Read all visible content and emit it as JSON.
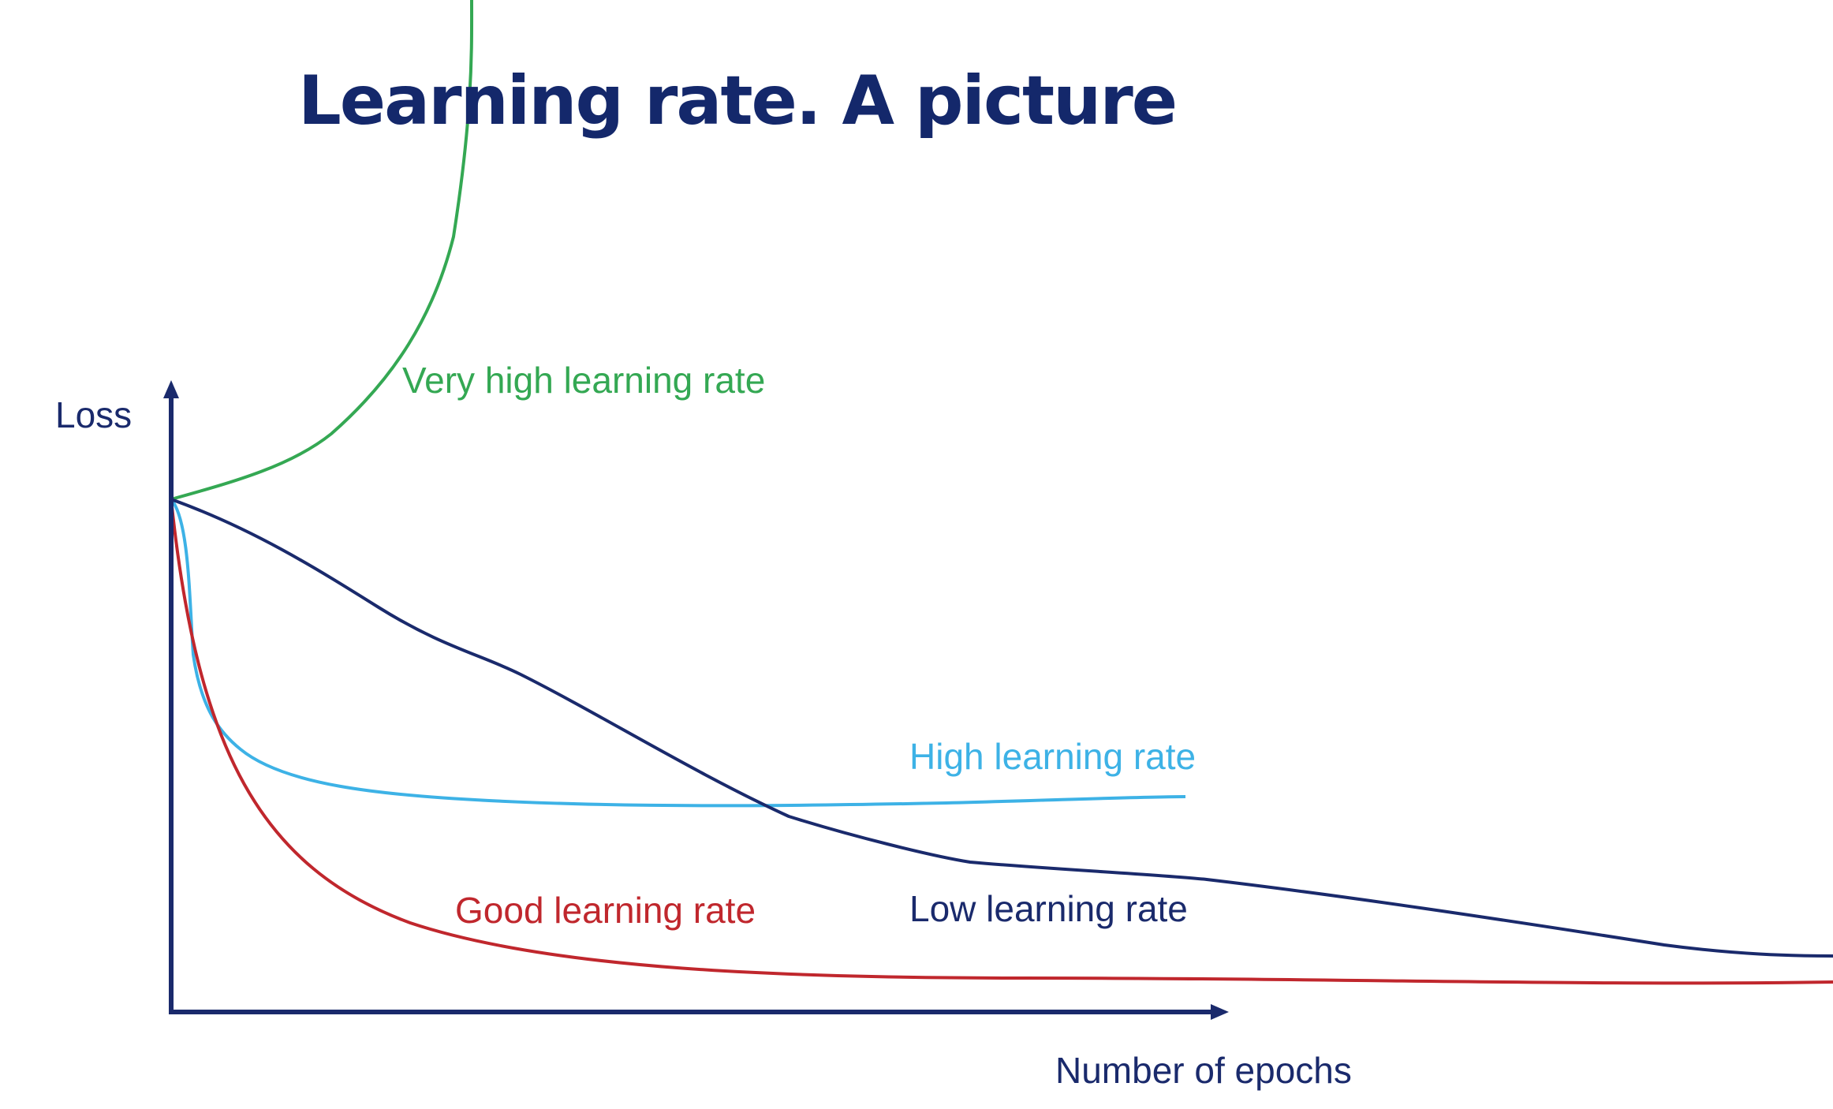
{
  "title": "Learning rate. A picture",
  "axes": {
    "y_label": "Loss",
    "x_label": "Number of epochs"
  },
  "curves": [
    {
      "id": "very_high",
      "label": "Very high learning rate",
      "color": "#34a853"
    },
    {
      "id": "high",
      "label": "High learning rate",
      "color": "#3db2e6"
    },
    {
      "id": "good",
      "label": "Good learning rate",
      "color": "#c0272d"
    },
    {
      "id": "low",
      "label": "Low learning rate",
      "color": "#1a2a6c"
    }
  ],
  "colors": {
    "axis": "#1a2a6c",
    "title": "#14286b"
  }
}
